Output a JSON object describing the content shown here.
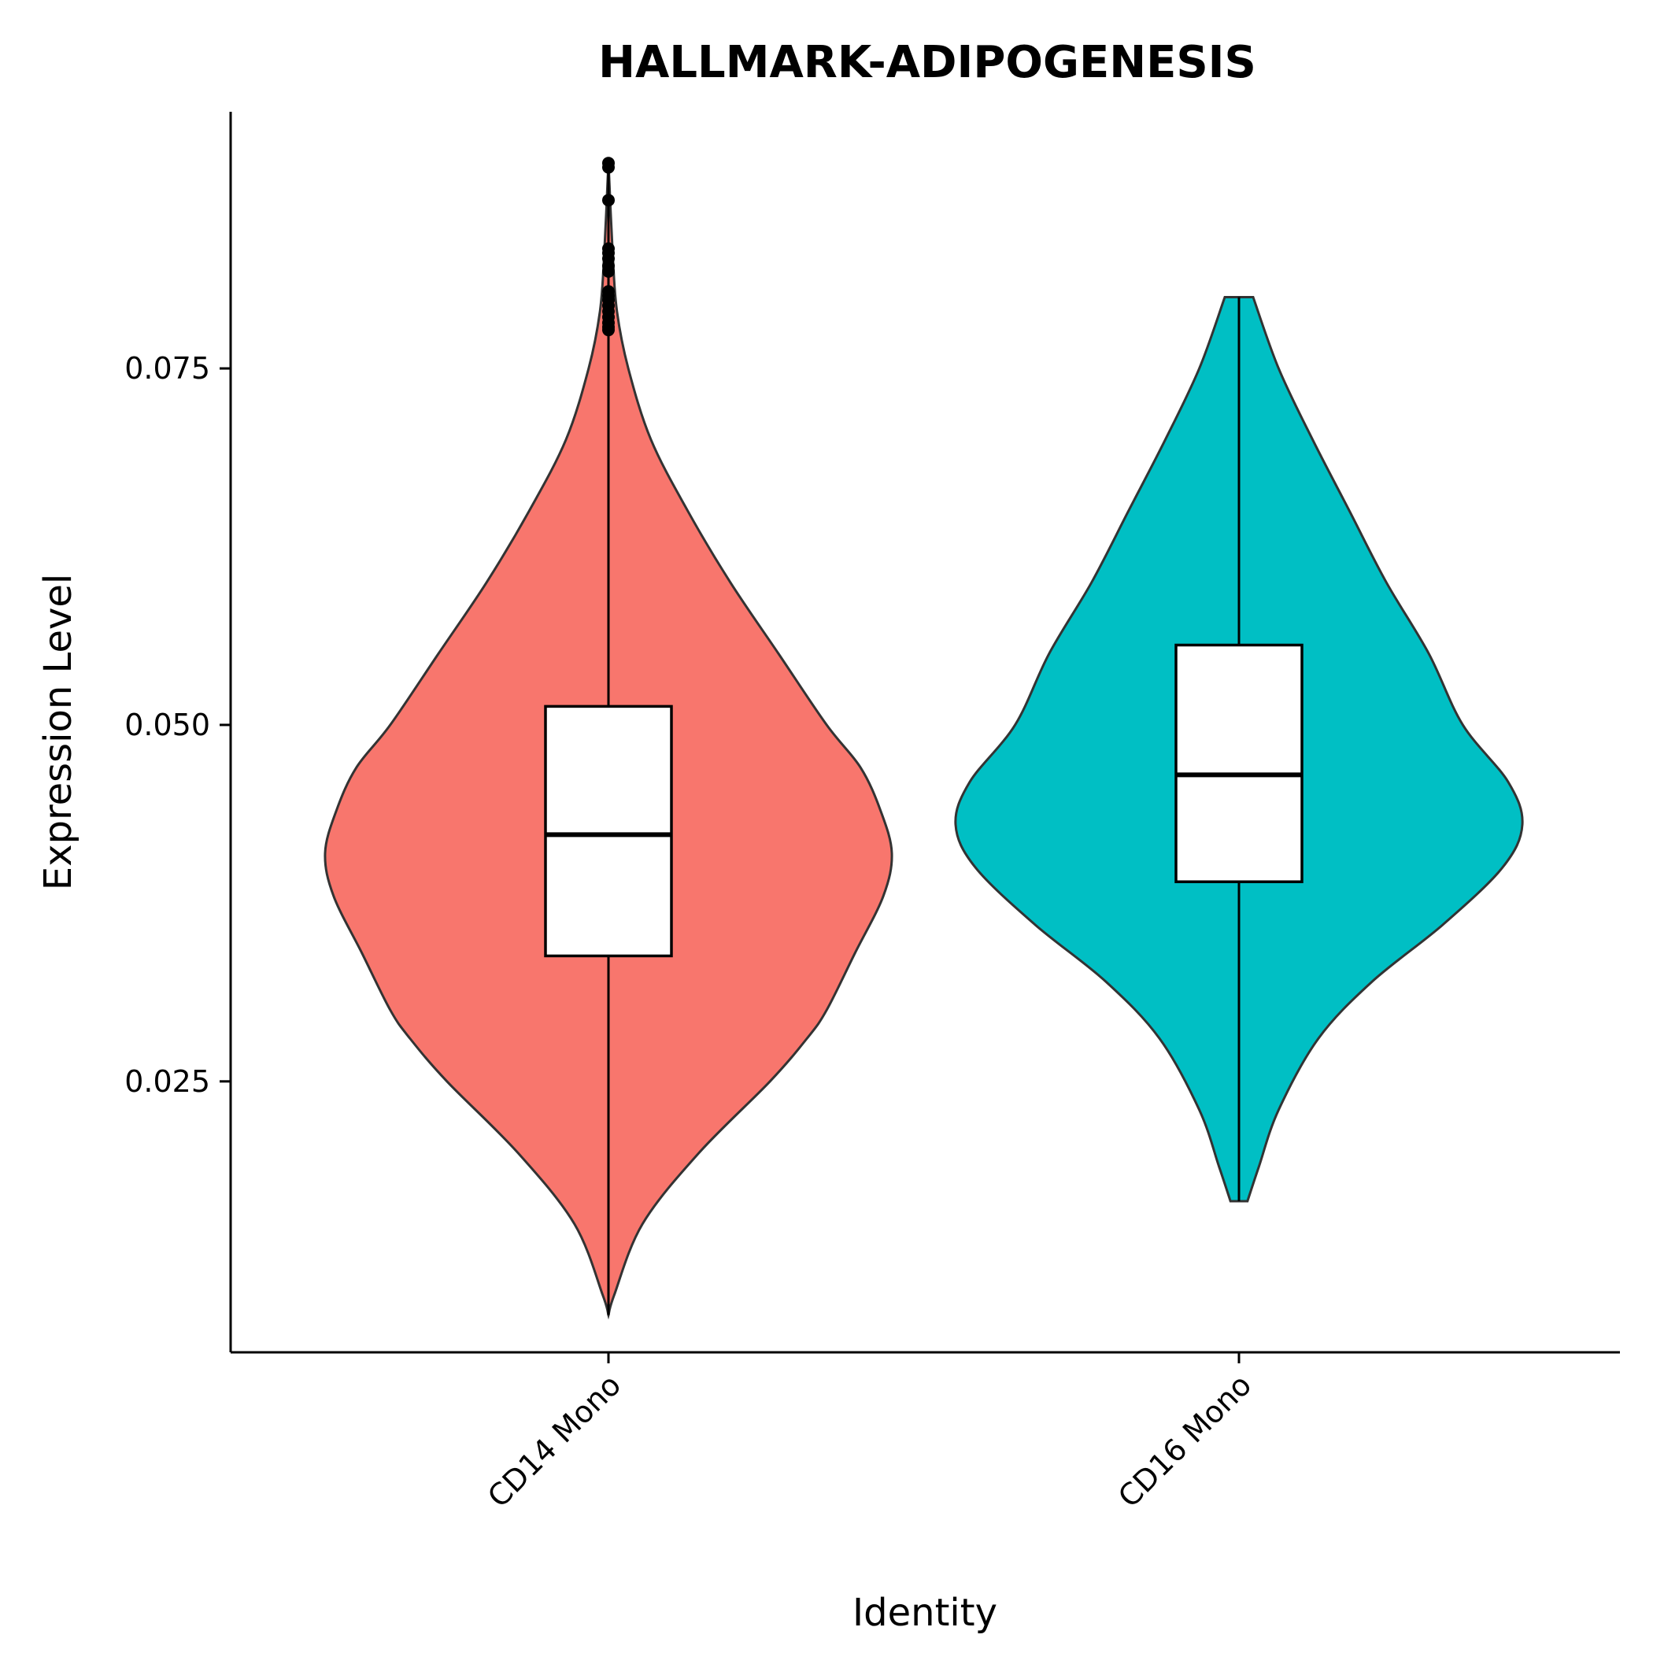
{
  "chart_data": {
    "type": "violin",
    "title": "HALLMARK-ADIPOGENESIS",
    "xlabel": "Identity",
    "ylabel": "Expression Level",
    "ylim": [
      0.006,
      0.093
    ],
    "yticks": [
      0.025,
      0.05,
      0.075
    ],
    "ytick_labels": [
      "0.025",
      "0.050",
      "0.075"
    ],
    "categories": [
      "CD14 Mono",
      "CD16 Mono"
    ],
    "grid": false,
    "legend": "none",
    "series": [
      {
        "category": "CD14 Mono",
        "color": "#F8766D",
        "min": 0.0086,
        "q1": 0.0338,
        "median": 0.0423,
        "q3": 0.0513,
        "whisker_high": 0.0776,
        "outliers": [
          0.0777,
          0.0779,
          0.0782,
          0.0786,
          0.079,
          0.0794,
          0.0798,
          0.0801,
          0.0804,
          0.0818,
          0.0822,
          0.0827,
          0.0831,
          0.0834,
          0.0868,
          0.0891,
          0.0894
        ],
        "density": [
          [
            0.0086,
            0.0
          ],
          [
            0.01,
            0.02
          ],
          [
            0.015,
            0.12
          ],
          [
            0.02,
            0.32
          ],
          [
            0.025,
            0.57
          ],
          [
            0.028,
            0.7
          ],
          [
            0.03,
            0.77
          ],
          [
            0.034,
            0.87
          ],
          [
            0.038,
            0.97
          ],
          [
            0.041,
            1.0
          ],
          [
            0.044,
            0.96
          ],
          [
            0.047,
            0.89
          ],
          [
            0.05,
            0.77
          ],
          [
            0.055,
            0.6
          ],
          [
            0.06,
            0.43
          ],
          [
            0.065,
            0.28
          ],
          [
            0.07,
            0.15
          ],
          [
            0.075,
            0.07
          ],
          [
            0.079,
            0.03
          ],
          [
            0.083,
            0.015
          ],
          [
            0.0895,
            0.0
          ]
        ]
      },
      {
        "category": "CD16 Mono",
        "color": "#00BFC4",
        "min": 0.0166,
        "q1": 0.039,
        "median": 0.0465,
        "q3": 0.0556,
        "whisker_high": 0.08,
        "outliers": [],
        "density": [
          [
            0.0166,
            0.03
          ],
          [
            0.019,
            0.07
          ],
          [
            0.023,
            0.14
          ],
          [
            0.028,
            0.28
          ],
          [
            0.032,
            0.47
          ],
          [
            0.036,
            0.72
          ],
          [
            0.04,
            0.93
          ],
          [
            0.043,
            1.0
          ],
          [
            0.046,
            0.95
          ],
          [
            0.05,
            0.79
          ],
          [
            0.055,
            0.67
          ],
          [
            0.06,
            0.52
          ],
          [
            0.065,
            0.39
          ],
          [
            0.07,
            0.26
          ],
          [
            0.075,
            0.14
          ],
          [
            0.08,
            0.05
          ]
        ]
      }
    ]
  }
}
